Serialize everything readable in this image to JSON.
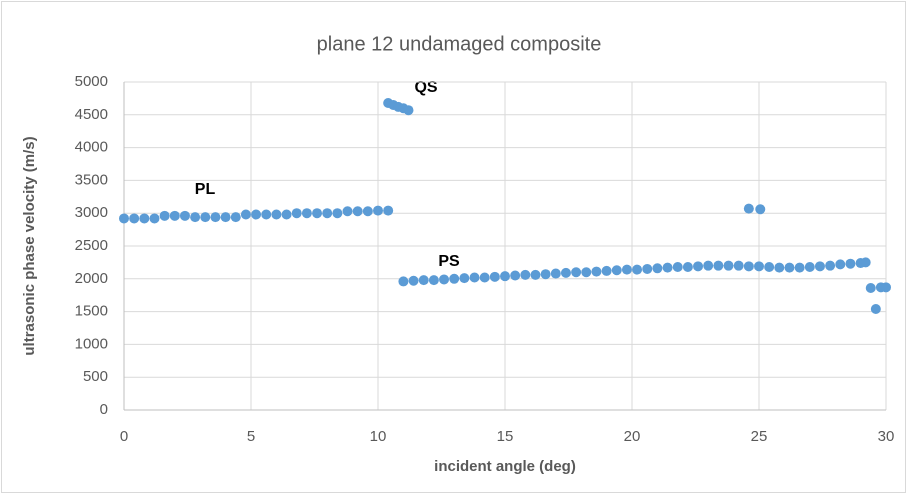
{
  "chart_data": {
    "type": "scatter",
    "title": "plane 12 undamaged composite",
    "x_label": "incident angle (deg)",
    "y_label": "ultrasonic phase velocity (m/s)",
    "annotations": [
      "PL",
      "QS",
      "PS"
    ],
    "color": "#5b9bd5",
    "x": [
      0,
      0.4,
      0.8,
      1.2,
      1.6,
      2,
      2.4,
      2.8,
      3.2,
      3.6,
      4,
      4.4,
      4.8,
      5.2,
      5.6,
      6,
      6.4,
      6.8,
      7.2,
      7.6,
      8,
      8.4,
      8.8,
      9.2,
      9.6,
      10,
      10.4,
      10.4,
      10.6,
      10.8,
      11,
      11.2,
      11,
      11.4,
      11.8,
      12.2,
      12.6,
      13,
      13.4,
      13.8,
      14.2,
      14.6,
      15,
      15.4,
      15.8,
      16.2,
      16.6,
      17,
      17.4,
      17.8,
      18.2,
      18.6,
      19,
      19.4,
      19.8,
      20.2,
      20.6,
      21,
      21.4,
      21.8,
      22.2,
      22.6,
      23,
      23.4,
      23.8,
      24.2,
      24.6,
      25,
      25.4,
      25.8,
      26.2,
      26.6,
      27,
      27.4,
      27.8,
      28.2,
      28.6,
      29,
      29.2,
      24.6,
      25.05,
      29.4,
      29.6,
      29.8,
      30
    ],
    "values": [
      2920,
      2920,
      2920,
      2920,
      2960,
      2960,
      2960,
      2940,
      2940,
      2940,
      2940,
      2940,
      2980,
      2980,
      2980,
      2980,
      2980,
      3000,
      3000,
      3000,
      3000,
      3000,
      3030,
      3030,
      3030,
      3040,
      3040,
      4680,
      4650,
      4620,
      4600,
      4570,
      1960,
      1970,
      1980,
      1980,
      1990,
      2000,
      2010,
      2020,
      2020,
      2030,
      2040,
      2050,
      2060,
      2060,
      2070,
      2080,
      2090,
      2100,
      2100,
      2110,
      2120,
      2130,
      2140,
      2140,
      2150,
      2160,
      2170,
      2180,
      2180,
      2190,
      2200,
      2200,
      2200,
      2200,
      2190,
      2190,
      2180,
      2170,
      2170,
      2170,
      2180,
      2190,
      2200,
      2220,
      2230,
      2240,
      2250,
      3070,
      3060,
      1860,
      1540,
      1870,
      1870
    ],
    "xlim": [
      0,
      30
    ],
    "xticks": [
      0,
      5,
      10,
      15,
      20,
      25,
      30
    ],
    "ylim": [
      0,
      5000
    ],
    "yticks": [
      0,
      500,
      1000,
      1500,
      2000,
      2500,
      3000,
      3500,
      4000,
      4500,
      5000
    ],
    "grid": true
  }
}
